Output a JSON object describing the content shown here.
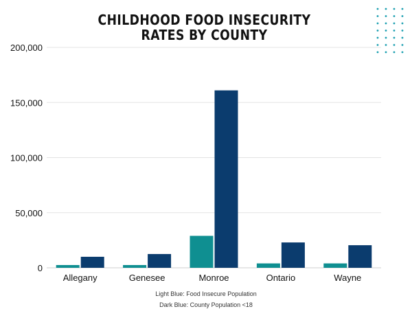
{
  "chart_data": {
    "type": "bar",
    "title": "CHILDHOOD FOOD INSECURITY RATES BY COUNTY",
    "xlabel": "",
    "ylabel": "",
    "categories": [
      "Allegany",
      "Genesee",
      "Monroe",
      "Ontario",
      "Wayne"
    ],
    "series": [
      {
        "values": [
          2500,
          2500,
          29000,
          4000,
          4000
        ],
        "color": "#0f8f91"
      },
      {
        "values": [
          10000,
          12500,
          161000,
          23000,
          20500
        ],
        "color": "#0b3c6e"
      }
    ],
    "ylim": [
      0,
      200000
    ],
    "yticks": [
      0,
      50000,
      100000,
      150000,
      200000
    ],
    "ytick_labels": [
      "0",
      "50,000",
      "100,000",
      "150,000",
      "200,000"
    ],
    "grid": true,
    "notes": [
      "Light Blue: Food Insecure Population",
      "Dark Blue: County Population <18"
    ],
    "decoration": {
      "dot_grid": "top-right",
      "dot_color": "#1a9fb0"
    }
  }
}
